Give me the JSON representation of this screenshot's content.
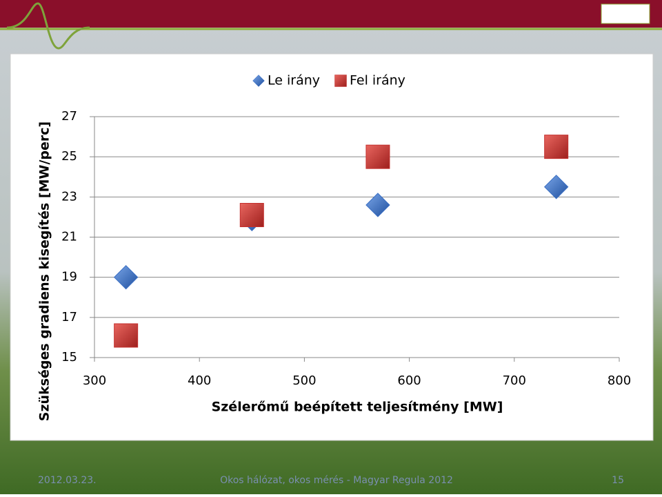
{
  "chart_data": {
    "type": "scatter",
    "xlabel": "Szélerőmű beépített teljesítmény [MW]",
    "ylabel": "Szükséges gradiens kisegítés [MW/perc]",
    "xlim": [
      300,
      800
    ],
    "xticks": [
      300,
      400,
      500,
      600,
      700,
      800
    ],
    "ylim": [
      15,
      27
    ],
    "yticks": [
      15,
      17,
      19,
      21,
      23,
      25,
      27
    ],
    "grid": true,
    "legend": "top",
    "series": [
      {
        "name": "Le irány",
        "color": "#3a6fc4",
        "marker": "diamond",
        "x": [
          330,
          450,
          570,
          740
        ],
        "values": [
          19,
          21.9,
          22.6,
          23.5
        ]
      },
      {
        "name": "Fel irány",
        "color": "#c4302e",
        "marker": "square",
        "x": [
          330,
          450,
          570,
          740
        ],
        "values": [
          16.1,
          22.1,
          25.0,
          25.5
        ]
      }
    ]
  },
  "footer": {
    "date": "2012.03.23.",
    "center": "Okos hálózat, okos mérés - Magyar Regula 2012",
    "page": "15"
  }
}
